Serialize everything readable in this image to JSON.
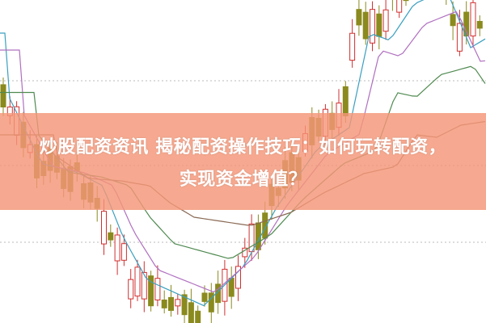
{
  "article": {
    "title_line1": "炒股配资资讯 揭秘配资操作技巧：如何玩转配资，",
    "title_line2": "实现资金增值？"
  },
  "colors": {
    "banner": "#f4a088",
    "candle_up": "#d03030",
    "candle_down": "#8a8a1e",
    "ma_lines": [
      "#3a9fc0",
      "#b070c0",
      "#4f8a50",
      "#8a6a55"
    ]
  }
}
